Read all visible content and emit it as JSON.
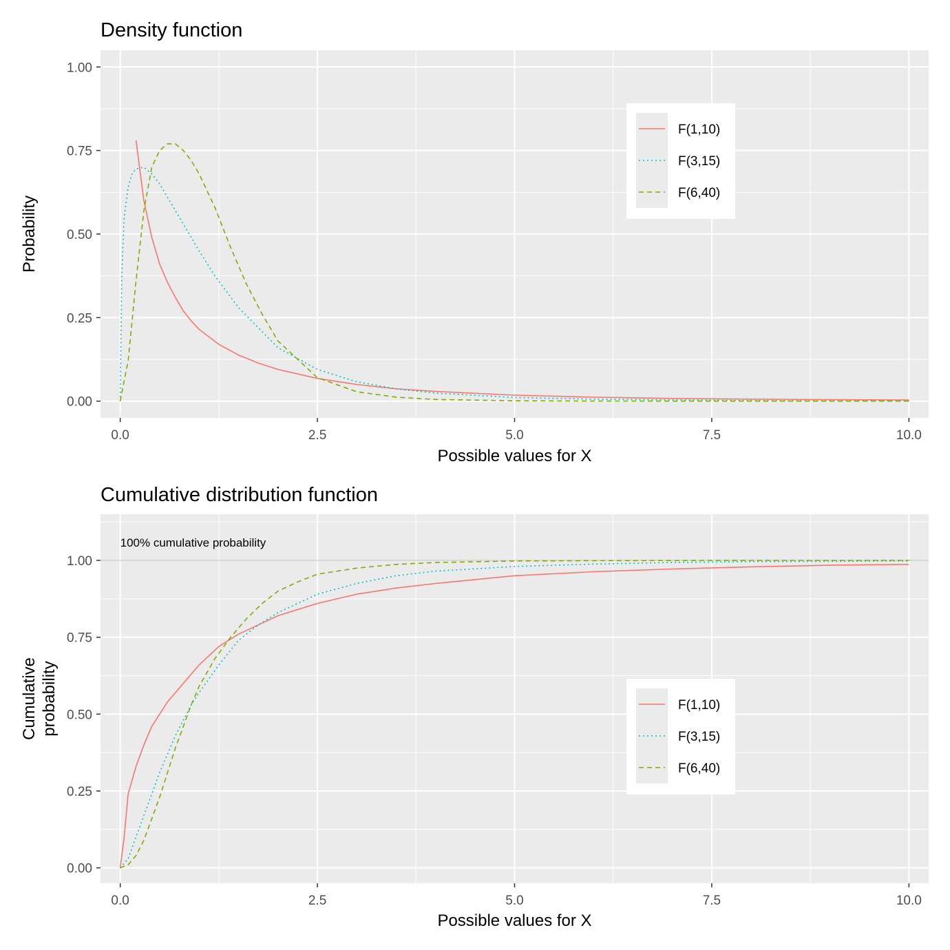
{
  "chart_data": [
    {
      "type": "line",
      "title": "Density function",
      "xlabel": "Possible values for X",
      "ylabel": "Probability",
      "xlim": [
        -0.25,
        10.25
      ],
      "ylim": [
        -0.05,
        1.05
      ],
      "x_ticks": [
        "0.0",
        "2.5",
        "5.0",
        "7.5",
        "10.0"
      ],
      "y_ticks": [
        "0.00",
        "0.25",
        "0.50",
        "0.75",
        "1.00"
      ],
      "grid": true,
      "legend_position": "top-right",
      "series": [
        {
          "name": "F(1,10)",
          "color": "#F8766D",
          "dash": "solid",
          "x": [
            0.2,
            0.3,
            0.4,
            0.5,
            0.6,
            0.7,
            0.8,
            0.9,
            1.0,
            1.25,
            1.5,
            1.75,
            2.0,
            2.5,
            3.0,
            3.5,
            4.0,
            5.0,
            6.0,
            7.0,
            8.0,
            9.0,
            10.0
          ],
          "y": [
            0.78,
            0.6,
            0.49,
            0.41,
            0.355,
            0.31,
            0.27,
            0.24,
            0.215,
            0.17,
            0.138,
            0.114,
            0.095,
            0.068,
            0.05,
            0.037,
            0.029,
            0.018,
            0.012,
            0.008,
            0.006,
            0.0045,
            0.0034
          ]
        },
        {
          "name": "F(3,15)",
          "color": "#00BFC4",
          "dash": "dotted",
          "x": [
            0.0,
            0.02,
            0.05,
            0.1,
            0.15,
            0.2,
            0.3,
            0.4,
            0.5,
            0.6,
            0.8,
            1.0,
            1.2,
            1.5,
            2.0,
            2.5,
            3.0,
            3.5,
            4.0,
            5.0,
            6.0,
            7.0,
            8.0,
            10.0
          ],
          "y": [
            0.0,
            0.38,
            0.55,
            0.64,
            0.68,
            0.695,
            0.7,
            0.68,
            0.65,
            0.61,
            0.53,
            0.45,
            0.375,
            0.28,
            0.16,
            0.095,
            0.058,
            0.037,
            0.024,
            0.011,
            0.006,
            0.0035,
            0.002,
            0.0008
          ]
        },
        {
          "name": "F(6,40)",
          "color": "#7CAE00",
          "dash": "dashed",
          "x": [
            0.0,
            0.1,
            0.2,
            0.3,
            0.4,
            0.5,
            0.6,
            0.7,
            0.8,
            0.9,
            1.0,
            1.2,
            1.4,
            1.6,
            1.8,
            2.0,
            2.5,
            3.0,
            3.5,
            4.0,
            5.0,
            6.0,
            8.0,
            10.0
          ],
          "y": [
            0.0,
            0.12,
            0.36,
            0.57,
            0.7,
            0.75,
            0.77,
            0.77,
            0.75,
            0.72,
            0.68,
            0.58,
            0.46,
            0.35,
            0.26,
            0.18,
            0.07,
            0.028,
            0.012,
            0.005,
            0.001,
            0.0003,
            0.0,
            0.0
          ]
        }
      ]
    },
    {
      "type": "line",
      "title": "Cumulative distribution function",
      "xlabel": "Possible values for X",
      "ylabel_lines": [
        "Cumulative",
        "probability"
      ],
      "xlim": [
        -0.25,
        10.25
      ],
      "ylim": [
        -0.05,
        1.15
      ],
      "x_ticks": [
        "0.0",
        "2.5",
        "5.0",
        "7.5",
        "10.0"
      ],
      "y_ticks": [
        "0.00",
        "0.25",
        "0.50",
        "0.75",
        "1.00"
      ],
      "grid": true,
      "legend_position": "bottom-right",
      "reference_line": {
        "y": 1.0,
        "color": "#cccccc"
      },
      "annotation": {
        "text": "100% cumulative probability",
        "x": 0.0,
        "y": 1.045
      },
      "series": [
        {
          "name": "F(1,10)",
          "color": "#F8766D",
          "dash": "solid",
          "x": [
            0.0,
            0.05,
            0.1,
            0.2,
            0.3,
            0.4,
            0.5,
            0.6,
            0.8,
            1.0,
            1.25,
            1.5,
            1.75,
            2.0,
            2.5,
            3.0,
            3.5,
            4.0,
            5.0,
            6.0,
            7.0,
            8.0,
            9.0,
            10.0
          ],
          "y": [
            0.0,
            0.1,
            0.24,
            0.33,
            0.4,
            0.46,
            0.5,
            0.54,
            0.6,
            0.66,
            0.72,
            0.76,
            0.79,
            0.82,
            0.86,
            0.89,
            0.91,
            0.925,
            0.95,
            0.963,
            0.972,
            0.979,
            0.984,
            0.987
          ]
        },
        {
          "name": "F(3,15)",
          "color": "#00BFC4",
          "dash": "dotted",
          "x": [
            0.0,
            0.1,
            0.2,
            0.3,
            0.4,
            0.5,
            0.6,
            0.7,
            0.8,
            0.9,
            1.0,
            1.25,
            1.5,
            1.75,
            2.0,
            2.5,
            3.0,
            3.5,
            4.0,
            5.0,
            6.0,
            7.0,
            8.0,
            10.0
          ],
          "y": [
            0.0,
            0.03,
            0.1,
            0.17,
            0.24,
            0.31,
            0.37,
            0.43,
            0.48,
            0.53,
            0.57,
            0.66,
            0.74,
            0.79,
            0.83,
            0.89,
            0.925,
            0.95,
            0.965,
            0.98,
            0.988,
            0.993,
            0.996,
            0.998
          ]
        },
        {
          "name": "F(6,40)",
          "color": "#7CAE00",
          "dash": "dashed",
          "x": [
            0.0,
            0.1,
            0.2,
            0.3,
            0.4,
            0.5,
            0.6,
            0.7,
            0.8,
            0.9,
            1.0,
            1.2,
            1.4,
            1.6,
            1.8,
            2.0,
            2.25,
            2.5,
            3.0,
            3.5,
            4.0,
            5.0,
            6.0,
            8.0,
            10.0
          ],
          "y": [
            0.0,
            0.01,
            0.04,
            0.09,
            0.16,
            0.23,
            0.31,
            0.39,
            0.46,
            0.53,
            0.59,
            0.68,
            0.75,
            0.81,
            0.86,
            0.9,
            0.93,
            0.955,
            0.975,
            0.987,
            0.993,
            0.998,
            0.999,
            1.0,
            1.0
          ]
        }
      ]
    }
  ]
}
